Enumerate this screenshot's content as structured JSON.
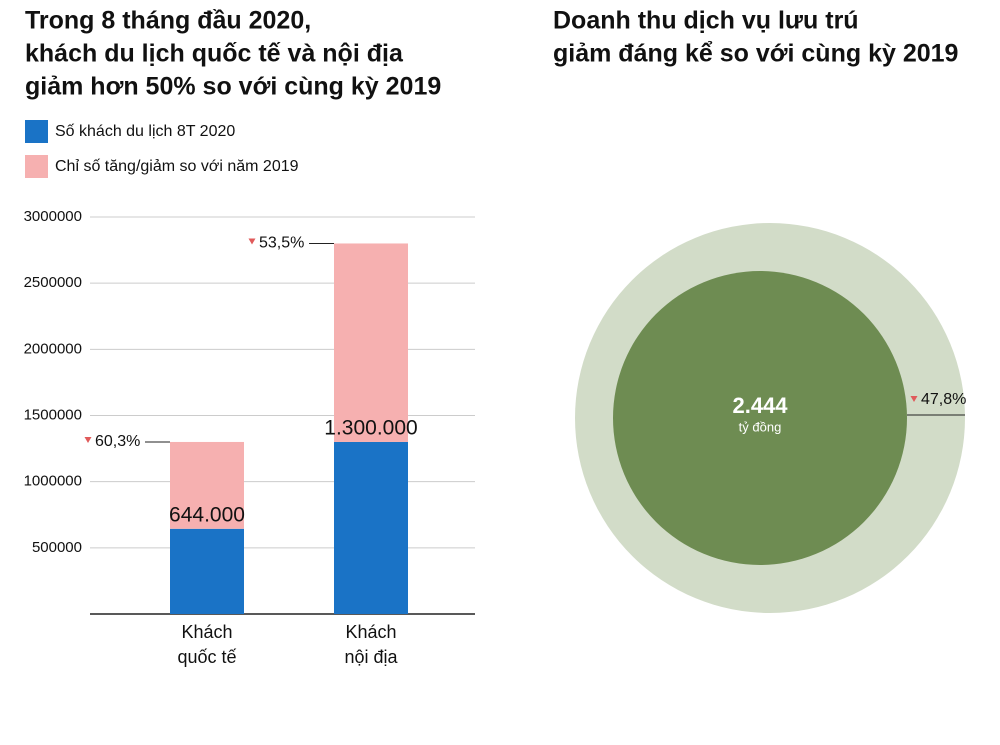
{
  "chart_data": [
    {
      "type": "stacked_bar",
      "title": [
        "Trong 8 tháng đầu 2020,",
        "khách du lịch quốc tế và nội địa",
        "giảm hơn 50% so với cùng kỳ 2019"
      ],
      "categories": [
        "Khách quốc tế",
        "Khách nội địa"
      ],
      "series": [
        {
          "name": "Số khách du lịch 8T 2020",
          "color": "#1a73c6",
          "values": [
            644000,
            1300000
          ],
          "value_labels": [
            "644.000",
            "1.300.000"
          ]
        },
        {
          "name": "Chỉ số tăng/giảm so với năm 2019",
          "color": "#f6b0b0",
          "values": [
            656000,
            1500000
          ]
        }
      ],
      "change_labels": [
        "60,3%",
        "53,5%"
      ],
      "ylim": [
        0,
        3000000
      ],
      "yticks": [
        500000,
        1000000,
        1500000,
        2000000,
        2500000,
        3000000
      ],
      "grid": true
    },
    {
      "type": "circle",
      "title": [
        "Doanh thu dịch vụ lưu trú",
        "giảm đáng kể so với cùng kỳ 2019"
      ],
      "value": 2444,
      "value_label": "2.444",
      "unit": "tỷ đồng",
      "change_label": "47,8%",
      "color": "#6e8c52",
      "outer_color": "#d2dcc8"
    }
  ]
}
